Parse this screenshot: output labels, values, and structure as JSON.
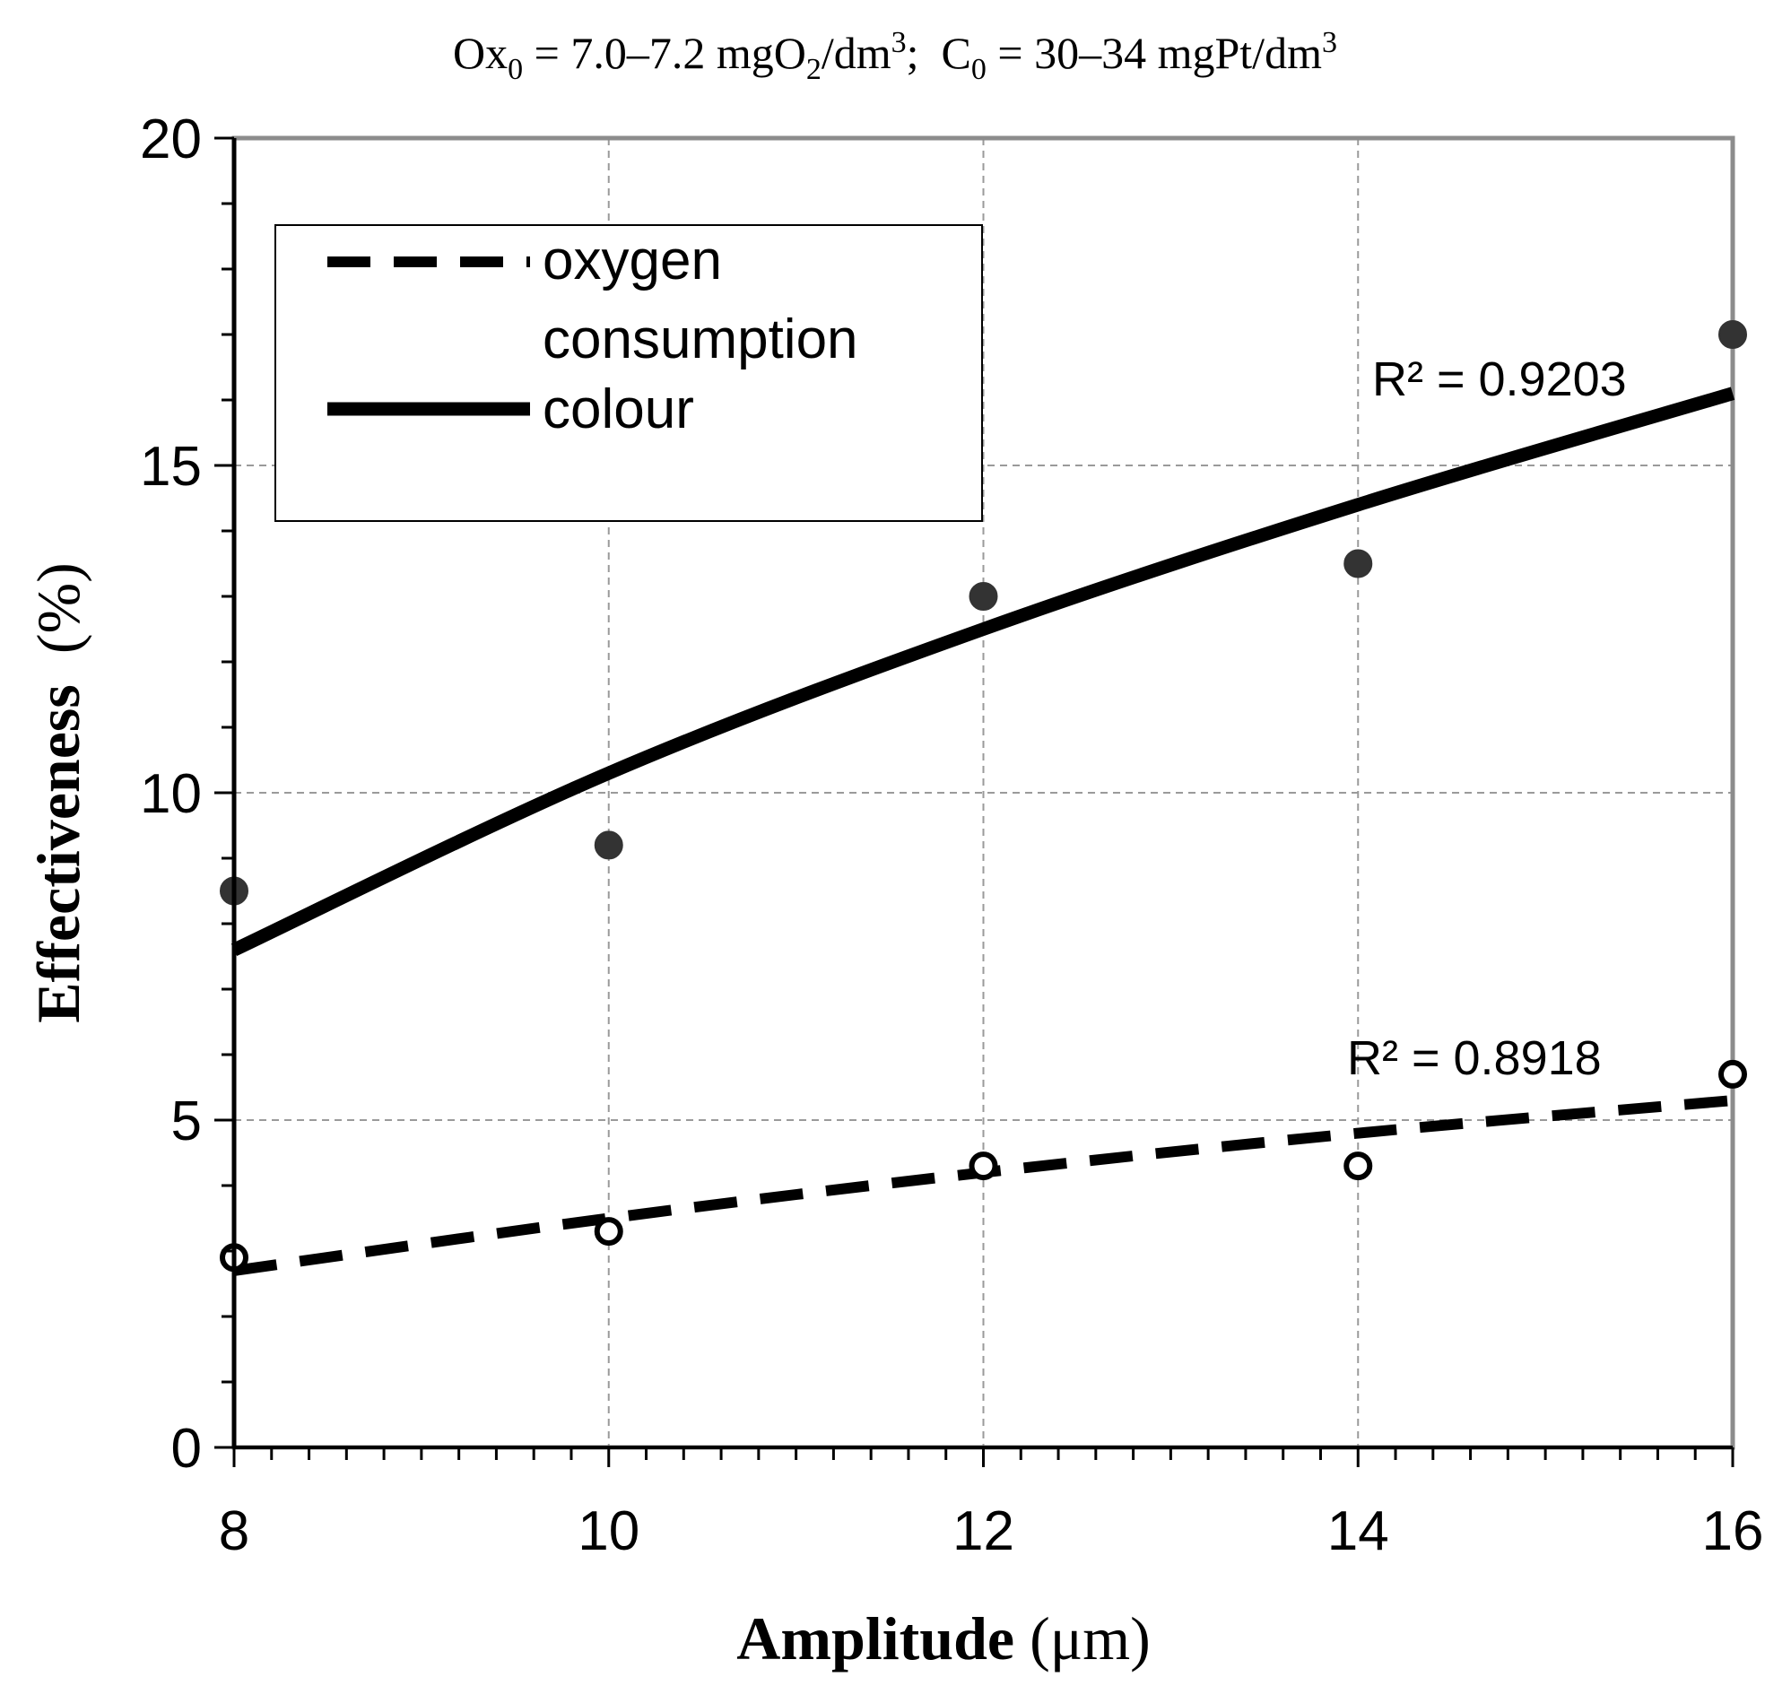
{
  "chart_data": {
    "type": "scatter",
    "title": {
      "ox_label": "Ox",
      "ox_sub": "0",
      "ox_value": " = 7.0‒7.2 mgO",
      "o2_sub": "2",
      "ox_unit": "/dm",
      "ox_sup": "3",
      "separator": ";  ",
      "c_label": "C",
      "c_sub": "0",
      "c_value": " = 30‒34 mgPt/dm",
      "c_sup": "3"
    },
    "xlabel_bold": "Amplitude",
    "xlabel_unit": " (μm)",
    "ylabel_bold": "Effectiveness",
    "ylabel_unit": "  (%)",
    "xlim": [
      8,
      16
    ],
    "ylim": [
      0,
      20
    ],
    "xticks": [
      8,
      10,
      12,
      14,
      16
    ],
    "yticks": [
      0,
      5,
      10,
      15,
      20
    ],
    "grid": true,
    "legend_position": "top-left",
    "legend": [
      {
        "label_line1": "oxygen",
        "label_line2": "consumption",
        "style": "dashed"
      },
      {
        "label_line1": "colour",
        "label_line2": "",
        "style": "solid"
      }
    ],
    "series": [
      {
        "name": "colour",
        "marker": "filled-circle",
        "color": "#333333",
        "x": [
          8,
          10,
          12,
          14,
          16
        ],
        "values": [
          8.5,
          9.2,
          13.0,
          13.5,
          17.0
        ],
        "trendline": {
          "style": "solid",
          "x": [
            8,
            10,
            12,
            14,
            16
          ],
          "y": [
            7.6,
            10.3,
            12.5,
            14.4,
            16.1
          ]
        },
        "r2_label": "R² = 0.9203"
      },
      {
        "name": "oxygen consumption",
        "marker": "open-circle",
        "color": "#000000",
        "x": [
          8,
          10,
          12,
          14,
          16
        ],
        "values": [
          2.9,
          3.3,
          4.3,
          4.3,
          5.7
        ],
        "trendline": {
          "style": "dashed",
          "x": [
            8,
            10,
            12,
            14,
            16
          ],
          "y": [
            2.7,
            3.5,
            4.2,
            4.8,
            5.3
          ]
        },
        "r2_label": "R² = 0.8918"
      }
    ]
  }
}
